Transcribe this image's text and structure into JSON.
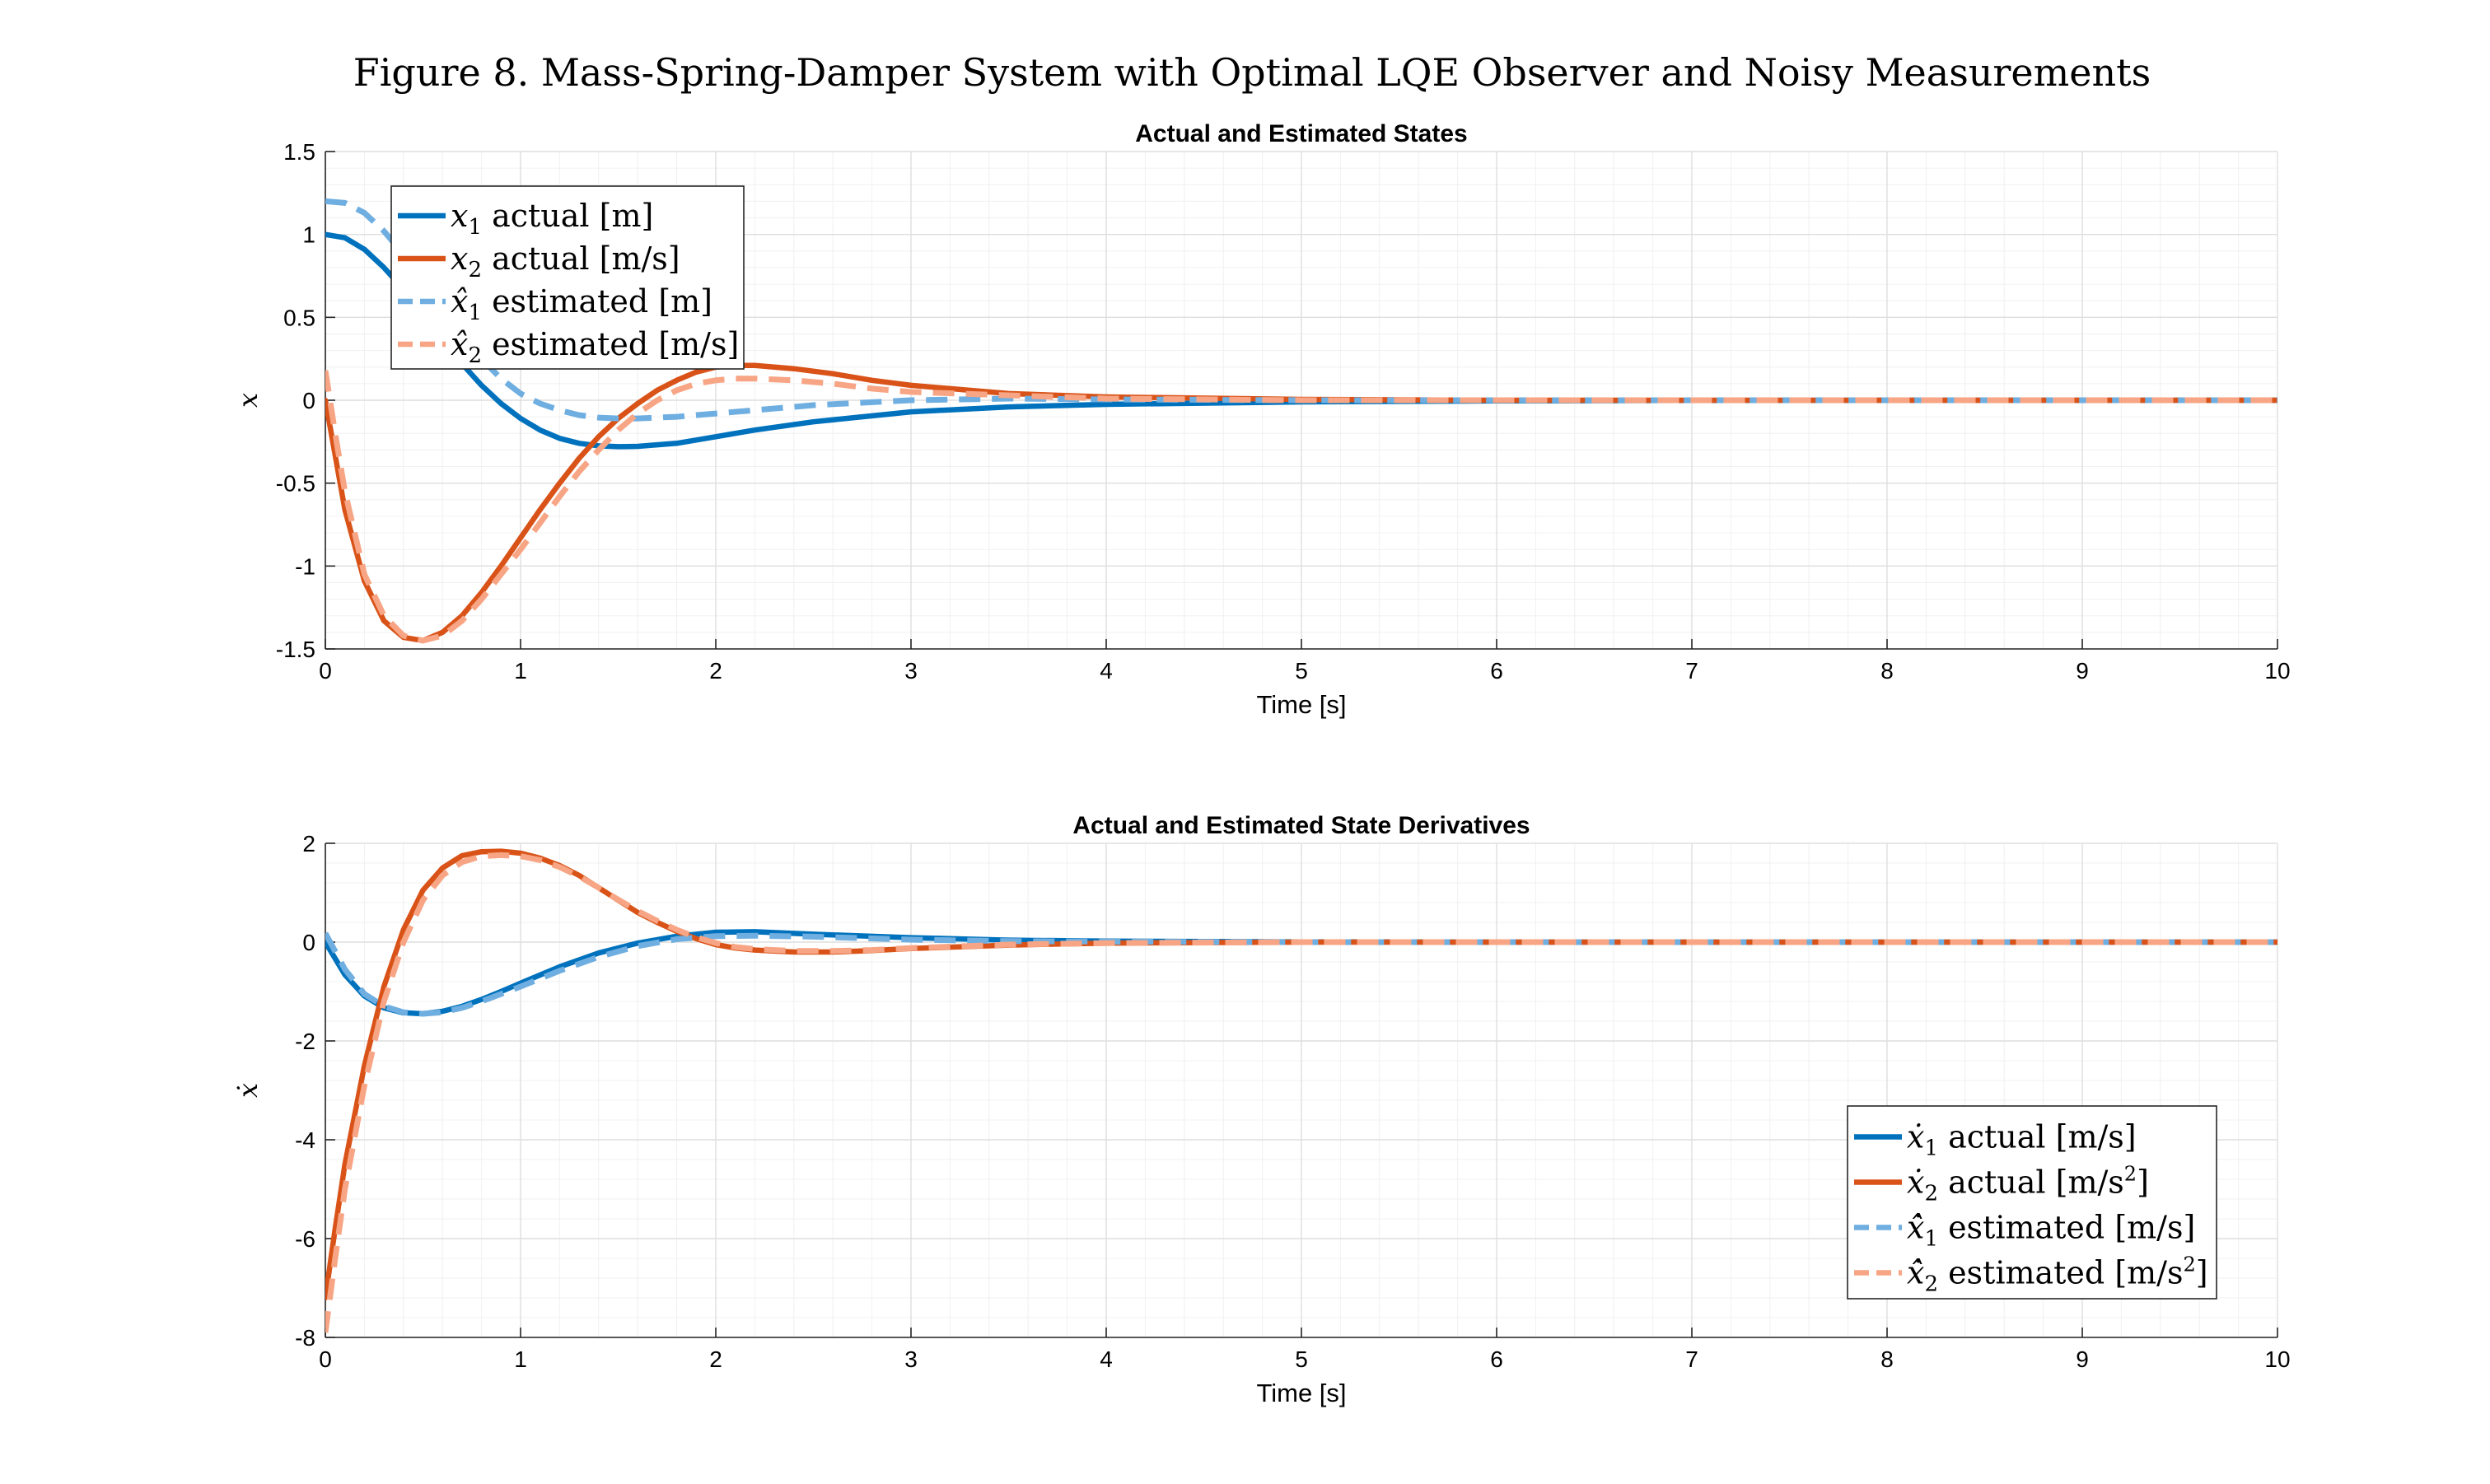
{
  "figure_title": "Figure 8. Mass-Spring-Damper System with Optimal LQE Observer and Noisy Measurements",
  "chart_data": [
    {
      "type": "line",
      "title": "Actual and Estimated States",
      "xlabel": "Time [s]",
      "ylabel": "x",
      "xlim": [
        0,
        10
      ],
      "ylim": [
        -1.5,
        1.5
      ],
      "xticks": [
        "0",
        "1",
        "2",
        "3",
        "4",
        "5",
        "6",
        "7",
        "8",
        "9",
        "10"
      ],
      "yticks": [
        "1.5",
        "1",
        "0.5",
        "0",
        "-0.5",
        "-1",
        "-1.5"
      ],
      "grid": true,
      "legend_position": "top-left",
      "series": [
        {
          "name": "x1 actual [m]",
          "legend_var": "x",
          "legend_sub": "1",
          "legend_rest": " actual [m]",
          "color": "#0072BD",
          "style": "solid",
          "x": [
            0,
            0.1,
            0.2,
            0.3,
            0.4,
            0.5,
            0.6,
            0.7,
            0.8,
            0.9,
            1.0,
            1.1,
            1.2,
            1.3,
            1.4,
            1.5,
            1.6,
            1.8,
            2.0,
            2.2,
            2.5,
            3.0,
            3.5,
            4.0,
            5.0,
            6.0,
            7.0,
            8.0,
            10.0
          ],
          "values": [
            1.0,
            0.98,
            0.91,
            0.8,
            0.67,
            0.52,
            0.37,
            0.22,
            0.09,
            -0.02,
            -0.11,
            -0.18,
            -0.23,
            -0.26,
            -0.275,
            -0.28,
            -0.278,
            -0.26,
            -0.22,
            -0.18,
            -0.13,
            -0.07,
            -0.04,
            -0.025,
            -0.01,
            -0.004,
            -0.001,
            0.0,
            0.0
          ]
        },
        {
          "name": "x2 actual [m/s]",
          "legend_var": "x",
          "legend_sub": "2",
          "legend_rest": " actual [m/s]",
          "color": "#D95319",
          "style": "solid",
          "x": [
            0,
            0.1,
            0.2,
            0.3,
            0.4,
            0.5,
            0.6,
            0.7,
            0.8,
            0.9,
            1.0,
            1.1,
            1.2,
            1.3,
            1.4,
            1.5,
            1.6,
            1.7,
            1.8,
            1.9,
            2.0,
            2.1,
            2.2,
            2.4,
            2.6,
            2.8,
            3.0,
            3.5,
            4.0,
            5.0,
            6.0,
            7.0,
            10.0
          ],
          "values": [
            0.0,
            -0.66,
            -1.09,
            -1.33,
            -1.43,
            -1.45,
            -1.4,
            -1.3,
            -1.16,
            -1.0,
            -0.83,
            -0.66,
            -0.5,
            -0.35,
            -0.22,
            -0.11,
            -0.02,
            0.06,
            0.12,
            0.17,
            0.2,
            0.21,
            0.21,
            0.19,
            0.16,
            0.12,
            0.09,
            0.04,
            0.02,
            0.005,
            0.0,
            0.0,
            0.0
          ]
        },
        {
          "name": "x̂1 estimated [m]",
          "legend_var": "x̂",
          "legend_sub": "1",
          "legend_rest": " estimated [m]",
          "color": "#6FAEE0",
          "style": "dashed",
          "x": [
            0,
            0.1,
            0.2,
            0.3,
            0.4,
            0.5,
            0.6,
            0.7,
            0.8,
            0.9,
            1.0,
            1.1,
            1.2,
            1.3,
            1.4,
            1.5,
            1.6,
            1.8,
            2.0,
            2.2,
            2.5,
            3.0,
            3.5,
            4.0,
            5.0,
            6.0,
            7.0,
            8.0,
            10.0
          ],
          "values": [
            1.2,
            1.19,
            1.13,
            1.02,
            0.88,
            0.72,
            0.55,
            0.39,
            0.25,
            0.13,
            0.04,
            -0.02,
            -0.06,
            -0.09,
            -0.105,
            -0.11,
            -0.11,
            -0.1,
            -0.08,
            -0.06,
            -0.03,
            0.0,
            0.01,
            0.005,
            0.0,
            0.0,
            0.0,
            0.0,
            0.0
          ]
        },
        {
          "name": "x̂2 estimated [m/s]",
          "legend_var": "x̂",
          "legend_sub": "2",
          "legend_rest": " estimated [m/s]",
          "color": "#F7A584",
          "style": "dashed",
          "x": [
            0,
            0.05,
            0.1,
            0.2,
            0.3,
            0.4,
            0.5,
            0.6,
            0.7,
            0.8,
            0.9,
            1.0,
            1.1,
            1.2,
            1.3,
            1.4,
            1.5,
            1.6,
            1.7,
            1.8,
            1.9,
            2.0,
            2.1,
            2.2,
            2.4,
            2.6,
            2.8,
            3.0,
            3.5,
            4.0,
            5.0,
            6.0,
            7.0,
            10.0
          ],
          "values": [
            0.18,
            -0.2,
            -0.55,
            -1.05,
            -1.3,
            -1.42,
            -1.45,
            -1.42,
            -1.33,
            -1.2,
            -1.05,
            -0.9,
            -0.74,
            -0.58,
            -0.43,
            -0.3,
            -0.18,
            -0.08,
            0.0,
            0.06,
            0.1,
            0.12,
            0.13,
            0.13,
            0.12,
            0.1,
            0.07,
            0.05,
            0.03,
            0.01,
            0.0,
            0.0,
            0.0,
            0.0
          ]
        }
      ]
    },
    {
      "type": "line",
      "title": "Actual and Estimated State Derivatives",
      "xlabel": "Time [s]",
      "ylabel": "ẋ",
      "xlim": [
        0,
        10
      ],
      "ylim": [
        -8,
        2
      ],
      "xticks": [
        "0",
        "1",
        "2",
        "3",
        "4",
        "5",
        "6",
        "7",
        "8",
        "9",
        "10"
      ],
      "yticks": [
        "2",
        "0",
        "-2",
        "-4",
        "-6",
        "-8"
      ],
      "grid": true,
      "legend_position": "bottom-right",
      "series": [
        {
          "name": "ẋ1 actual [m/s]",
          "legend_var": "ẋ",
          "legend_sub": "1",
          "legend_rest": " actual [m/s]",
          "color": "#0072BD",
          "style": "solid",
          "x": [
            0,
            0.1,
            0.2,
            0.3,
            0.4,
            0.5,
            0.6,
            0.7,
            0.8,
            0.9,
            1.0,
            1.2,
            1.4,
            1.6,
            1.8,
            2.0,
            2.2,
            2.5,
            3.0,
            3.5,
            4.0,
            5.0,
            6.0,
            10.0
          ],
          "values": [
            0.0,
            -0.66,
            -1.09,
            -1.33,
            -1.43,
            -1.45,
            -1.4,
            -1.3,
            -1.16,
            -1.0,
            -0.83,
            -0.5,
            -0.22,
            -0.02,
            0.12,
            0.2,
            0.21,
            0.16,
            0.09,
            0.04,
            0.02,
            0.005,
            0.0,
            0.0
          ]
        },
        {
          "name": "ẋ2 actual [m/s2]",
          "legend_var": "ẋ",
          "legend_sub": "2",
          "legend_rest": " actual [m/s",
          "legend_sup": "2",
          "legend_tail": "]",
          "color": "#D95319",
          "style": "solid",
          "x": [
            0,
            0.05,
            0.1,
            0.2,
            0.3,
            0.4,
            0.5,
            0.6,
            0.7,
            0.8,
            0.9,
            1.0,
            1.1,
            1.2,
            1.3,
            1.4,
            1.5,
            1.6,
            1.7,
            1.8,
            1.9,
            2.0,
            2.1,
            2.2,
            2.4,
            2.6,
            2.8,
            3.0,
            3.5,
            4.0,
            5.0,
            6.0,
            10.0
          ],
          "values": [
            -7.2,
            -5.8,
            -4.5,
            -2.5,
            -0.9,
            0.25,
            1.05,
            1.5,
            1.75,
            1.83,
            1.84,
            1.8,
            1.7,
            1.55,
            1.35,
            1.1,
            0.85,
            0.6,
            0.4,
            0.22,
            0.07,
            -0.05,
            -0.12,
            -0.16,
            -0.2,
            -0.2,
            -0.17,
            -0.13,
            -0.06,
            -0.02,
            0.0,
            0.0,
            0.0
          ]
        },
        {
          "name": "x̂̇1 estimated [m/s]",
          "legend_var": "ẋ̂",
          "legend_sub": "1",
          "legend_rest": " estimated [m/s]",
          "color": "#6FAEE0",
          "style": "dashed",
          "x": [
            0,
            0.1,
            0.2,
            0.3,
            0.4,
            0.5,
            0.6,
            0.7,
            0.8,
            0.9,
            1.0,
            1.2,
            1.4,
            1.6,
            1.8,
            2.0,
            2.2,
            2.5,
            3.0,
            3.5,
            4.0,
            5.0,
            10.0
          ],
          "values": [
            0.18,
            -0.55,
            -1.05,
            -1.3,
            -1.42,
            -1.45,
            -1.42,
            -1.33,
            -1.2,
            -1.05,
            -0.9,
            -0.58,
            -0.3,
            -0.08,
            0.06,
            0.12,
            0.13,
            0.11,
            0.05,
            0.02,
            0.01,
            0.0,
            0.0
          ]
        },
        {
          "name": "x̂̇2 estimated [m/s2]",
          "legend_var": "ẋ̂",
          "legend_sub": "2",
          "legend_rest": " estimated [m/s",
          "legend_sup": "2",
          "legend_tail": "]",
          "color": "#F7A584",
          "style": "dashed",
          "x": [
            0,
            0.05,
            0.1,
            0.2,
            0.3,
            0.4,
            0.5,
            0.6,
            0.7,
            0.8,
            0.9,
            1.0,
            1.1,
            1.2,
            1.3,
            1.4,
            1.5,
            1.6,
            1.7,
            1.8,
            1.9,
            2.0,
            2.1,
            2.2,
            2.4,
            2.6,
            2.8,
            3.0,
            3.5,
            4.0,
            5.0,
            10.0
          ],
          "values": [
            -7.9,
            -6.4,
            -5.0,
            -2.9,
            -1.2,
            0.0,
            0.85,
            1.35,
            1.62,
            1.74,
            1.76,
            1.74,
            1.66,
            1.52,
            1.33,
            1.1,
            0.86,
            0.63,
            0.43,
            0.25,
            0.1,
            -0.02,
            -0.1,
            -0.14,
            -0.18,
            -0.18,
            -0.16,
            -0.12,
            -0.05,
            -0.02,
            0.0,
            0.0
          ]
        }
      ]
    }
  ]
}
